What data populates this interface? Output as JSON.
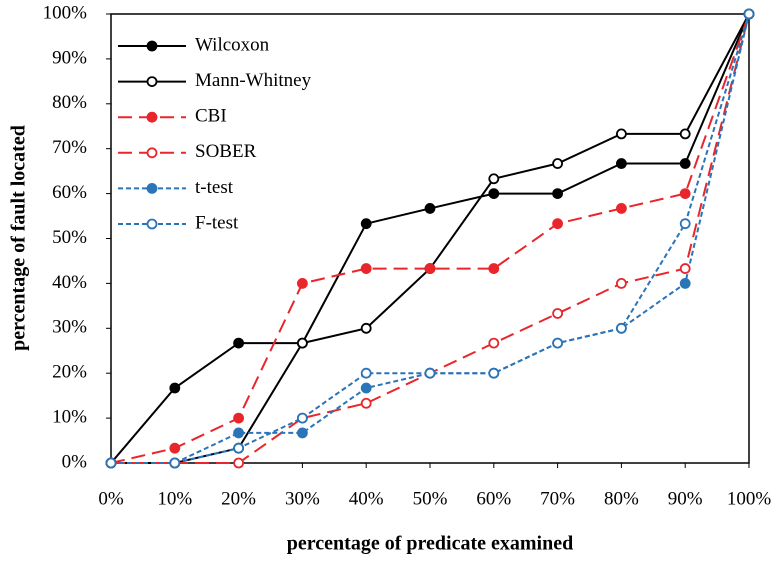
{
  "chart_data": {
    "type": "line",
    "xlabel": "percentage of predicate examined",
    "ylabel": "percentage of fault located",
    "x": [
      0,
      10,
      20,
      30,
      40,
      50,
      60,
      70,
      80,
      90,
      100
    ],
    "xlim": [
      0,
      100
    ],
    "xticks": [
      {
        "value": 0,
        "label": "0%"
      },
      {
        "value": 10,
        "label": "10%"
      },
      {
        "value": 20,
        "label": "20%"
      },
      {
        "value": 30,
        "label": "30%"
      },
      {
        "value": 40,
        "label": "40%"
      },
      {
        "value": 50,
        "label": "50%"
      },
      {
        "value": 60,
        "label": "60%"
      },
      {
        "value": 70,
        "label": "70%"
      },
      {
        "value": 80,
        "label": "80%"
      },
      {
        "value": 90,
        "label": "90%"
      },
      {
        "value": 100,
        "label": "100%"
      }
    ],
    "ylim": [
      0,
      100
    ],
    "yticks": [
      {
        "value": 0,
        "label": "0%"
      },
      {
        "value": 10,
        "label": "10%"
      },
      {
        "value": 20,
        "label": "20%"
      },
      {
        "value": 30,
        "label": "30%"
      },
      {
        "value": 40,
        "label": "40%"
      },
      {
        "value": 50,
        "label": "50%"
      },
      {
        "value": 60,
        "label": "60%"
      },
      {
        "value": 70,
        "label": "70%"
      },
      {
        "value": 80,
        "label": "80%"
      },
      {
        "value": 90,
        "label": "90%"
      },
      {
        "value": 100,
        "label": "100%"
      }
    ],
    "legend": "upper left",
    "series": [
      {
        "name": "Wilcoxon",
        "color": "#000000",
        "marker": "filled",
        "dash": "solid",
        "values": [
          0,
          16.7,
          26.7,
          26.7,
          53.3,
          56.7,
          60,
          60,
          66.7,
          66.7,
          100
        ]
      },
      {
        "name": "Mann-Whitney",
        "color": "#000000",
        "marker": "open",
        "dash": "solid",
        "values": [
          0,
          0,
          3.3,
          26.7,
          30,
          43.3,
          63.3,
          66.7,
          73.3,
          73.3,
          100
        ]
      },
      {
        "name": "CBI",
        "color": "#e8262b",
        "marker": "filled",
        "dash": "long",
        "values": [
          0,
          3.3,
          10,
          40,
          43.3,
          43.3,
          43.3,
          53.3,
          56.7,
          60,
          100
        ]
      },
      {
        "name": "SOBER",
        "color": "#e8262b",
        "marker": "open",
        "dash": "long",
        "values": [
          0,
          0,
          0,
          10,
          13.3,
          20,
          26.7,
          33.3,
          40,
          43.3,
          100
        ]
      },
      {
        "name": "t-test",
        "color": "#2a74b8",
        "marker": "filled",
        "dash": "short",
        "values": [
          0,
          0,
          6.7,
          6.7,
          16.7,
          20,
          20,
          26.7,
          30,
          40,
          100
        ]
      },
      {
        "name": "F-test",
        "color": "#2a74b8",
        "marker": "open",
        "dash": "short",
        "values": [
          0,
          0,
          3.3,
          10,
          20,
          20,
          20,
          26.7,
          30,
          53.3,
          100
        ]
      }
    ]
  }
}
